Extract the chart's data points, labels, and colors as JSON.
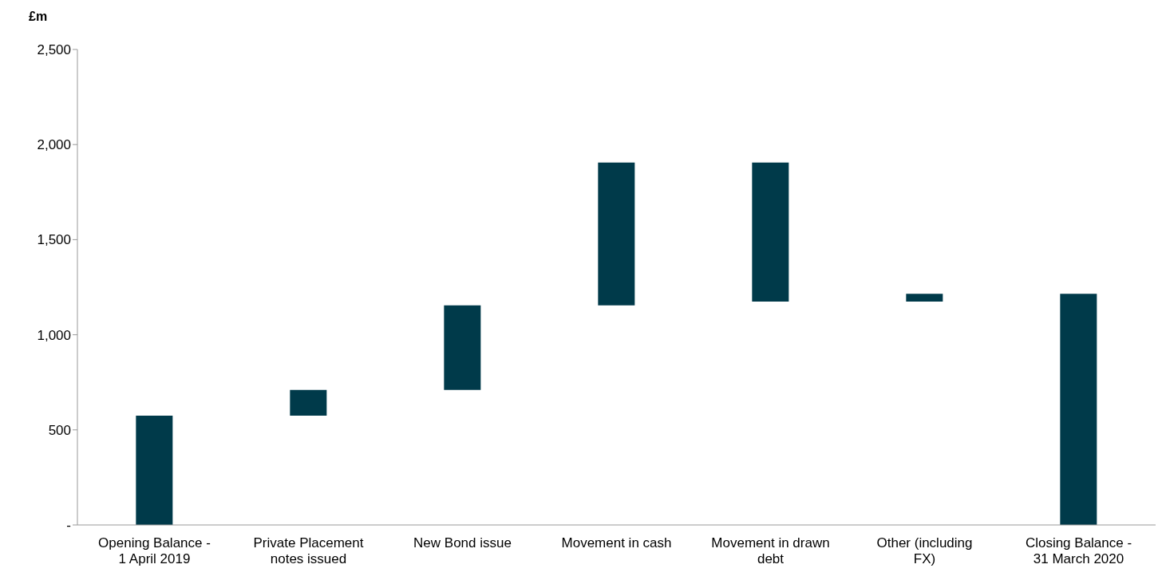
{
  "chart_data": {
    "type": "bar",
    "ylabel": "£m",
    "categories": [
      "Opening Balance - 1 April 2019",
      "Private Placement notes issued",
      "New Bond issue",
      "Movement in cash",
      "Movement in drawn debt",
      "Other (including FX)",
      "Closing Balance - 31 March 2020"
    ],
    "values": [
      575,
      135,
      445,
      750,
      -730,
      40,
      1215
    ],
    "base": [
      0,
      575,
      710,
      1155,
      1905,
      1175,
      0
    ],
    "color": "#003a4a",
    "ylim": [
      0,
      2500
    ],
    "yticks": [
      {
        "value": 0,
        "label": "-"
      },
      {
        "value": 500,
        "label": "500"
      },
      {
        "value": 1000,
        "label": "1,000"
      },
      {
        "value": 1500,
        "label": "1,500"
      },
      {
        "value": 2000,
        "label": "2,000"
      },
      {
        "value": 2500,
        "label": "2,500"
      }
    ],
    "grid": false,
    "legend": false
  }
}
